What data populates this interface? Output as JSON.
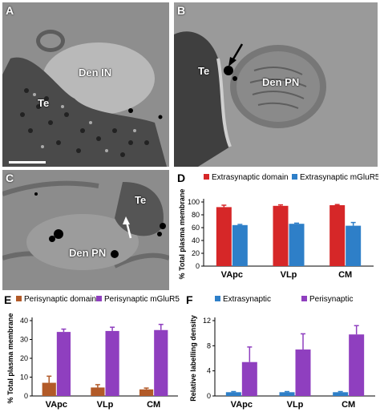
{
  "panels": {
    "A": {
      "label": "A",
      "texts": [
        "Den IN",
        "Te"
      ]
    },
    "B": {
      "label": "B",
      "texts": [
        "Te",
        "Den PN"
      ]
    },
    "C": {
      "label": "C",
      "texts": [
        "Te",
        "Den PN"
      ]
    }
  },
  "colors": {
    "red": "#d62728",
    "blue": "#2e7fc8",
    "brown": "#b25a28",
    "purple": "#8f3fbf"
  },
  "chart_data": [
    {
      "panel": "D",
      "type": "bar",
      "categories": [
        "VApc",
        "VLp",
        "CM"
      ],
      "series": [
        {
          "name": "Extrasynaptic domain",
          "values": [
            92,
            94,
            95
          ],
          "errors": [
            3,
            1.5,
            1
          ],
          "color": "#d62728"
        },
        {
          "name": "Extrasynaptic mGluR5",
          "values": [
            64,
            66,
            63
          ],
          "errors": [
            1,
            1,
            5
          ],
          "color": "#2e7fc8"
        }
      ],
      "ylabel": "% Total plasma membrane",
      "ylim": [
        0,
        100
      ],
      "yticks": [
        0,
        20,
        40,
        60,
        80,
        100
      ],
      "legend": "top"
    },
    {
      "panel": "E",
      "type": "bar",
      "categories": [
        "VApc",
        "VLp",
        "CM"
      ],
      "series": [
        {
          "name": "Perisynaptic domain",
          "values": [
            7,
            4.5,
            3.5
          ],
          "errors": [
            3.5,
            1.5,
            0.7
          ],
          "color": "#b25a28"
        },
        {
          "name": "Perisynaptic mGluR5",
          "values": [
            34,
            34.5,
            35
          ],
          "errors": [
            1.5,
            2,
            3
          ],
          "color": "#8f3fbf"
        }
      ],
      "ylabel": "% Total plasma membrane",
      "ylim": [
        0,
        40
      ],
      "yticks": [
        0,
        10,
        20,
        30,
        40
      ],
      "legend": "top"
    },
    {
      "panel": "F",
      "type": "bar",
      "categories": [
        "VApc",
        "VLp",
        "CM"
      ],
      "series": [
        {
          "name": "Extrasynaptic",
          "values": [
            0.6,
            0.6,
            0.6
          ],
          "errors": [
            0.1,
            0.1,
            0.1
          ],
          "color": "#2e7fc8"
        },
        {
          "name": "Perisynaptic",
          "values": [
            5.4,
            7.4,
            9.8
          ],
          "errors": [
            2.4,
            2.5,
            1.4
          ],
          "color": "#8f3fbf"
        }
      ],
      "ylabel": "Relative labelling density",
      "ylim": [
        0,
        12
      ],
      "yticks": [
        0,
        4,
        8,
        12
      ],
      "legend": "top"
    }
  ]
}
